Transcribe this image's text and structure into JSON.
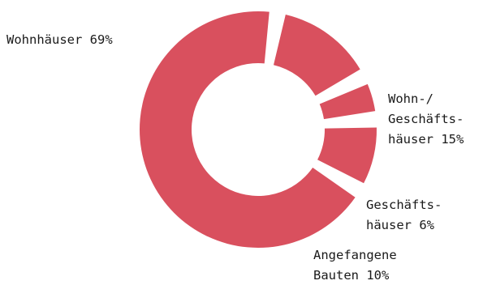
{
  "chart_data": {
    "type": "pie",
    "variant": "donut",
    "color": "#d9505e",
    "background": "#ffffff",
    "legend": "none",
    "slices": [
      {
        "label_lines": [
          "Wohnhäuser 69%"
        ],
        "value": 69
      },
      {
        "label_lines": [
          "Wohn-/",
          "Geschäfts-",
          "häuser 15%"
        ],
        "value": 15
      },
      {
        "label_lines": [
          "Geschäfts-",
          "häuser 6%"
        ],
        "value": 6
      },
      {
        "label_lines": [
          "Angefangene",
          "Bauten 10%"
        ],
        "value": 10
      }
    ]
  }
}
